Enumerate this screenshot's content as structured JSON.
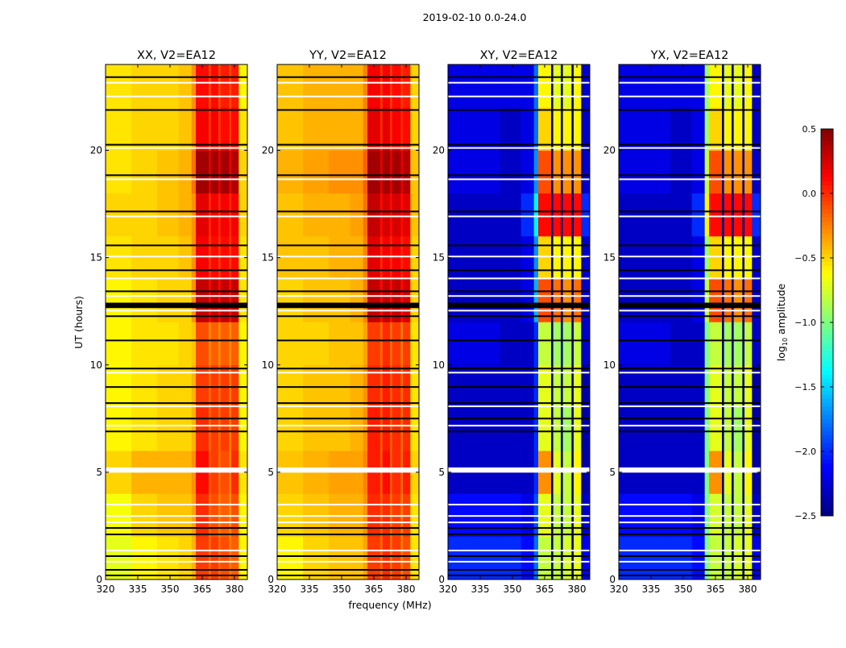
{
  "chart_data": {
    "type": "heatmap",
    "title": "2019-02-10 0.0-24.0",
    "xlabel": "frequency (MHz)",
    "ylabel": "UT (hours)",
    "xlim": [
      320,
      386
    ],
    "ylim": [
      0,
      24
    ],
    "xticks": [
      "320",
      "335",
      "350",
      "365",
      "380"
    ],
    "xtick_values": [
      320,
      335,
      350,
      365,
      380
    ],
    "yticks": [
      "0",
      "5",
      "10",
      "15",
      "20"
    ],
    "ytick_values": [
      0,
      5,
      10,
      15,
      20
    ],
    "colormap": "jet",
    "colorbar": {
      "label": "log10 amplitude",
      "label_main": "log",
      "label_sub": "10",
      "label_rest": " amplitude",
      "range": [
        -2.5,
        0.5
      ],
      "ticks": [
        "0.5",
        "0.0",
        "−0.5",
        "−1.0",
        "−1.5",
        "−2.0",
        "−2.5"
      ],
      "tick_values": [
        0.5,
        0.0,
        -0.5,
        -1.0,
        -1.5,
        -2.0,
        -2.5
      ]
    },
    "freq_bin_edges_mhz": [
      320,
      332,
      344,
      354,
      360,
      362,
      368,
      369,
      372.5,
      373.5,
      377.5,
      378.5,
      382,
      386
    ],
    "time_bin_edges_hours": [
      0,
      2,
      4,
      6,
      8,
      10,
      12,
      14,
      16,
      18,
      20,
      22,
      24
    ],
    "flagged_white_hours": [
      23.15,
      22.51,
      20.11,
      18.65,
      16.92,
      15.05,
      14.03,
      13.21,
      12.53,
      9.64,
      8.07,
      7.17,
      3.49,
      2.96,
      2.66,
      1.35,
      0.83
    ],
    "flagged_white_band_hours": [
      [
        4.98,
        5.22
      ]
    ],
    "black_line_hours": [
      23.41,
      21.88,
      20.26,
      18.84,
      17.15,
      15.57,
      14.41,
      13.43,
      12.27,
      11.14,
      9.83,
      8.97,
      8.22,
      7.5,
      6.9,
      2.4,
      2.1,
      1.09,
      0.45,
      0.19
    ],
    "black_band_hours": [
      [
        12.65,
        12.9
      ]
    ],
    "panels": [
      {
        "title": "XX, V2=EA12",
        "values": [
          [
            -0.7,
            -0.6,
            -0.55,
            -0.5,
            -0.4,
            -0.05,
            -0.2,
            -0.05,
            -0.2,
            -0.1,
            -0.25,
            -0.15,
            -0.6
          ],
          [
            -0.65,
            -0.5,
            -0.45,
            -0.45,
            -0.35,
            0.0,
            -0.2,
            -0.1,
            -0.25,
            -0.15,
            -0.3,
            -0.1,
            -0.6
          ],
          [
            -0.5,
            -0.4,
            -0.4,
            -0.4,
            -0.3,
            0.1,
            -0.15,
            -0.05,
            -0.2,
            -0.1,
            -0.25,
            0.0,
            -0.55
          ],
          [
            -0.6,
            -0.55,
            -0.5,
            -0.5,
            -0.4,
            0.0,
            -0.2,
            -0.05,
            -0.2,
            -0.05,
            -0.25,
            -0.05,
            -0.6
          ],
          [
            -0.6,
            -0.55,
            -0.5,
            -0.5,
            -0.4,
            -0.05,
            -0.2,
            -0.05,
            -0.2,
            -0.05,
            -0.25,
            -0.05,
            -0.6
          ],
          [
            -0.6,
            -0.55,
            -0.55,
            -0.5,
            -0.45,
            -0.1,
            -0.3,
            -0.15,
            -0.3,
            -0.15,
            -0.3,
            -0.15,
            -0.6
          ],
          [
            -0.6,
            -0.55,
            -0.5,
            -0.5,
            -0.3,
            0.3,
            0.1,
            0.3,
            0.1,
            0.3,
            0.1,
            0.3,
            -0.55
          ],
          [
            -0.55,
            -0.5,
            -0.5,
            -0.45,
            -0.3,
            0.15,
            -0.05,
            0.1,
            -0.05,
            0.1,
            -0.05,
            0.1,
            -0.55
          ],
          [
            -0.5,
            -0.5,
            -0.45,
            -0.4,
            -0.3,
            0.2,
            0.0,
            0.15,
            0.0,
            0.15,
            0.0,
            0.15,
            -0.5
          ],
          [
            -0.55,
            -0.5,
            -0.45,
            -0.4,
            -0.2,
            0.4,
            0.2,
            0.4,
            0.2,
            0.4,
            0.2,
            0.35,
            -0.5
          ],
          [
            -0.55,
            -0.5,
            -0.5,
            -0.45,
            -0.3,
            0.15,
            -0.05,
            0.15,
            -0.05,
            0.1,
            -0.05,
            0.1,
            -0.55
          ],
          [
            -0.55,
            -0.5,
            -0.5,
            -0.45,
            -0.3,
            0.1,
            -0.1,
            0.1,
            -0.1,
            0.05,
            -0.1,
            0.05,
            -0.6
          ]
        ]
      },
      {
        "title": "YY, V2=EA12",
        "values": [
          [
            -0.6,
            -0.5,
            -0.45,
            -0.45,
            -0.35,
            -0.05,
            -0.2,
            0.0,
            -0.2,
            -0.05,
            -0.25,
            -0.1,
            -0.55
          ],
          [
            -0.5,
            -0.45,
            -0.4,
            -0.4,
            -0.3,
            0.0,
            -0.15,
            0.0,
            -0.2,
            -0.05,
            -0.25,
            -0.05,
            -0.55
          ],
          [
            -0.45,
            -0.4,
            -0.35,
            -0.35,
            -0.25,
            0.05,
            -0.15,
            0.1,
            -0.15,
            0.0,
            -0.2,
            0.05,
            -0.5
          ],
          [
            -0.5,
            -0.45,
            -0.45,
            -0.4,
            -0.3,
            0.05,
            -0.15,
            0.05,
            -0.15,
            0.0,
            -0.2,
            0.0,
            -0.55
          ],
          [
            -0.5,
            -0.45,
            -0.45,
            -0.4,
            -0.3,
            0.0,
            -0.15,
            0.05,
            -0.15,
            0.0,
            -0.2,
            0.0,
            -0.55
          ],
          [
            -0.5,
            -0.5,
            -0.45,
            -0.45,
            -0.35,
            -0.05,
            -0.2,
            0.0,
            -0.2,
            -0.05,
            -0.25,
            -0.05,
            -0.55
          ],
          [
            -0.5,
            -0.45,
            -0.45,
            -0.4,
            -0.25,
            0.3,
            0.1,
            0.3,
            0.1,
            0.3,
            0.1,
            0.25,
            -0.5
          ],
          [
            -0.45,
            -0.45,
            -0.4,
            -0.4,
            -0.25,
            0.2,
            0.0,
            0.15,
            0.0,
            0.15,
            0.0,
            0.1,
            -0.5
          ],
          [
            -0.45,
            -0.4,
            -0.4,
            -0.35,
            -0.2,
            0.3,
            0.1,
            0.25,
            0.1,
            0.25,
            0.1,
            0.2,
            -0.45
          ],
          [
            -0.4,
            -0.35,
            -0.3,
            -0.3,
            -0.15,
            0.4,
            0.2,
            0.4,
            0.2,
            0.4,
            0.2,
            0.35,
            -0.45
          ],
          [
            -0.45,
            -0.4,
            -0.4,
            -0.4,
            -0.25,
            0.2,
            0.0,
            0.2,
            0.0,
            0.15,
            0.0,
            0.1,
            -0.5
          ],
          [
            -0.45,
            -0.4,
            -0.4,
            -0.4,
            -0.25,
            0.15,
            -0.05,
            0.15,
            -0.05,
            0.1,
            -0.05,
            0.05,
            -0.5
          ]
        ]
      },
      {
        "title": "XY, V2=EA12",
        "values": [
          [
            -2.0,
            -2.0,
            -2.0,
            -2.1,
            -1.8,
            -0.8,
            -2.5,
            -0.8,
            -2.5,
            -0.75,
            -2.5,
            -0.7,
            -2.2
          ],
          [
            -2.1,
            -2.1,
            -2.1,
            -2.2,
            -1.9,
            -0.7,
            -2.5,
            -0.8,
            -2.5,
            -0.8,
            -2.5,
            -0.7,
            -2.3
          ],
          [
            -2.3,
            -2.3,
            -2.3,
            -2.3,
            -2.0,
            -0.3,
            -2.5,
            -0.7,
            -2.5,
            -0.8,
            -2.5,
            -0.6,
            -2.4
          ],
          [
            -2.3,
            -2.3,
            -2.3,
            -2.3,
            -2.0,
            -0.7,
            -2.5,
            -0.8,
            -2.5,
            -0.9,
            -2.5,
            -0.7,
            -2.4
          ],
          [
            -2.3,
            -2.3,
            -2.3,
            -2.3,
            -2.0,
            -0.7,
            -2.5,
            -0.8,
            -2.5,
            -0.8,
            -2.5,
            -0.7,
            -2.4
          ],
          [
            -2.2,
            -2.2,
            -2.3,
            -2.3,
            -2.0,
            -0.8,
            -2.5,
            -0.9,
            -2.5,
            -0.9,
            -2.5,
            -0.8,
            -2.3
          ],
          [
            -2.3,
            -2.3,
            -2.3,
            -2.2,
            -1.6,
            -0.1,
            -2.5,
            -0.2,
            -2.5,
            -0.3,
            -2.5,
            -0.2,
            -2.3
          ],
          [
            -2.3,
            -2.3,
            -2.3,
            -2.2,
            -1.7,
            -0.5,
            -2.5,
            -0.6,
            -2.5,
            -0.6,
            -2.5,
            -0.6,
            -2.3
          ],
          [
            -2.3,
            -2.3,
            -2.3,
            -2.0,
            -1.4,
            0.1,
            -2.5,
            0.1,
            -2.5,
            0.1,
            -2.5,
            0.1,
            -2.0
          ],
          [
            -2.2,
            -2.2,
            -2.3,
            -2.2,
            -1.7,
            -0.1,
            -2.5,
            -0.3,
            -2.5,
            -0.3,
            -2.5,
            -0.3,
            -2.3
          ],
          [
            -2.2,
            -2.2,
            -2.3,
            -2.2,
            -1.8,
            -0.5,
            -2.5,
            -0.6,
            -2.5,
            -0.6,
            -2.5,
            -0.6,
            -2.3
          ],
          [
            -2.2,
            -2.2,
            -2.2,
            -2.2,
            -1.8,
            -0.6,
            -2.5,
            -0.7,
            -2.5,
            -0.7,
            -2.5,
            -0.6,
            -2.3
          ]
        ]
      },
      {
        "title": "YX, V2=EA12",
        "values": [
          [
            -2.0,
            -2.0,
            -2.0,
            -2.1,
            -1.0,
            -0.8,
            -2.5,
            -0.8,
            -2.5,
            -0.75,
            -2.5,
            -0.7,
            -2.2
          ],
          [
            -2.1,
            -2.1,
            -2.1,
            -2.2,
            -1.0,
            -0.75,
            -2.5,
            -0.8,
            -2.5,
            -0.8,
            -2.5,
            -0.7,
            -2.3
          ],
          [
            -2.3,
            -2.3,
            -2.3,
            -2.3,
            -1.0,
            -0.3,
            -2.5,
            -0.7,
            -2.5,
            -0.8,
            -2.5,
            -0.6,
            -2.4
          ],
          [
            -2.3,
            -2.3,
            -2.3,
            -2.3,
            -1.0,
            -0.7,
            -2.5,
            -0.8,
            -2.5,
            -0.9,
            -2.5,
            -0.7,
            -2.4
          ],
          [
            -2.3,
            -2.3,
            -2.3,
            -2.3,
            -1.0,
            -0.7,
            -2.5,
            -0.8,
            -2.5,
            -0.8,
            -2.5,
            -0.7,
            -2.4
          ],
          [
            -2.2,
            -2.2,
            -2.3,
            -2.3,
            -1.0,
            -0.8,
            -2.5,
            -0.9,
            -2.5,
            -0.9,
            -2.5,
            -0.8,
            -2.3
          ],
          [
            -2.3,
            -2.3,
            -2.3,
            -2.2,
            -0.8,
            -0.1,
            -2.5,
            -0.2,
            -2.5,
            -0.3,
            -2.5,
            -0.2,
            -2.3
          ],
          [
            -2.3,
            -2.3,
            -2.3,
            -2.2,
            -0.9,
            -0.5,
            -2.5,
            -0.6,
            -2.5,
            -0.6,
            -2.5,
            -0.6,
            -2.3
          ],
          [
            -2.3,
            -2.3,
            -2.3,
            -2.0,
            -0.6,
            0.1,
            -2.5,
            0.1,
            -2.5,
            0.1,
            -2.5,
            0.1,
            -2.0
          ],
          [
            -2.2,
            -2.2,
            -2.3,
            -2.2,
            -0.8,
            -0.1,
            -2.5,
            -0.3,
            -2.5,
            -0.3,
            -2.5,
            -0.3,
            -2.3
          ],
          [
            -2.2,
            -2.2,
            -2.3,
            -2.2,
            -0.9,
            -0.5,
            -2.5,
            -0.6,
            -2.5,
            -0.6,
            -2.5,
            -0.6,
            -2.3
          ],
          [
            -2.2,
            -2.2,
            -2.2,
            -2.2,
            -0.9,
            -0.6,
            -2.5,
            -0.7,
            -2.5,
            -0.7,
            -2.5,
            -0.6,
            -2.3
          ]
        ]
      }
    ]
  }
}
